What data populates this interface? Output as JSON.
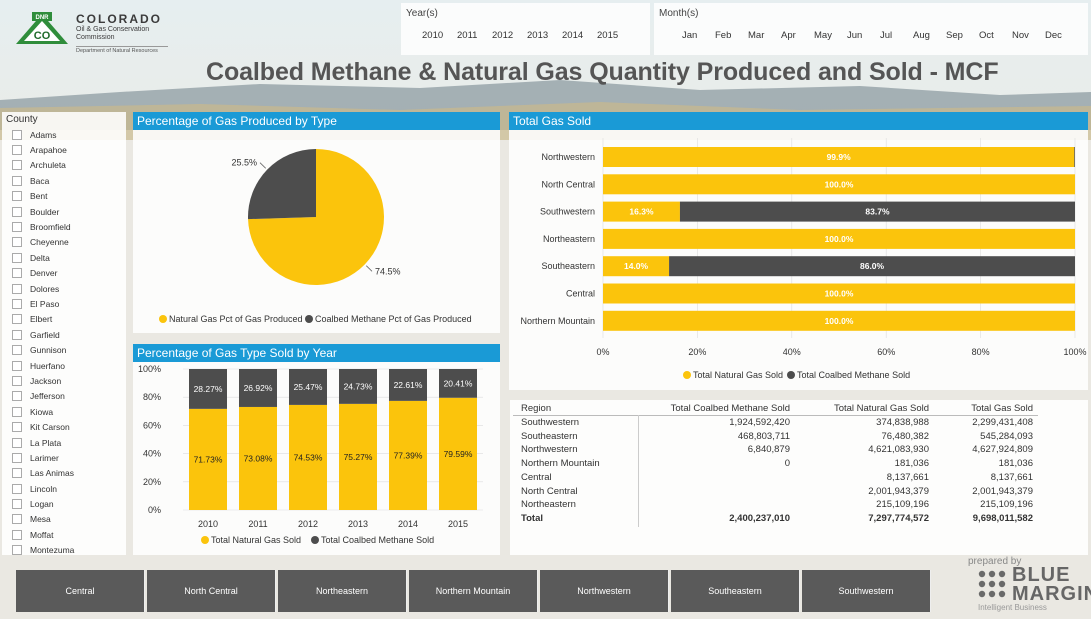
{
  "header": {
    "logo": {
      "badge": "DNR",
      "mark": "CO",
      "name": "COLORADO",
      "subtitle": "Oil & Gas Conservation Commission",
      "department": "Department of Natural Resources"
    },
    "title": "Coalbed Methane & Natural Gas Quantity Produced and Sold - MCF"
  },
  "year_slicer": {
    "label": "Year(s)",
    "options": [
      "2010",
      "2011",
      "2012",
      "2013",
      "2014",
      "2015"
    ]
  },
  "month_slicer": {
    "label": "Month(s)",
    "options": [
      "Jan",
      "Feb",
      "Mar",
      "Apr",
      "May",
      "Jun",
      "Jul",
      "Aug",
      "Sep",
      "Oct",
      "Nov",
      "Dec"
    ]
  },
  "county_slicer": {
    "label": "County",
    "items": [
      "Adams",
      "Arapahoe",
      "Archuleta",
      "Baca",
      "Bent",
      "Boulder",
      "Broomfield",
      "Cheyenne",
      "Delta",
      "Denver",
      "Dolores",
      "El Paso",
      "Elbert",
      "Garfield",
      "Gunnison",
      "Huerfano",
      "Jackson",
      "Jefferson",
      "Kiowa",
      "Kit Carson",
      "La Plata",
      "Larimer",
      "Las Animas",
      "Lincoln",
      "Logan",
      "Mesa",
      "Moffat",
      "Montezuma"
    ]
  },
  "colors": {
    "natural_gas": "#fbc40c",
    "coalbed_methane": "#4d4d4d",
    "title_bar": "#1a9ad6",
    "button": "#5a5a5a"
  },
  "pie_panel": {
    "title": "Percentage of Gas Produced by Type"
  },
  "year_panel": {
    "title": "Percentage of Gas Type Sold by Year"
  },
  "region_panel": {
    "title": "Total Gas Sold"
  },
  "chart_data": [
    {
      "type": "pie",
      "title": "Percentage of Gas Produced by Type",
      "slices": [
        {
          "name": "Natural Gas Pct of Gas Produced",
          "value": 74.5,
          "label": "74.5%",
          "color": "#fbc40c"
        },
        {
          "name": "Coalbed Methane Pct of Gas Produced",
          "value": 25.5,
          "label": "25.5%",
          "color": "#4d4d4d"
        }
      ],
      "legend": "bottom"
    },
    {
      "type": "bar",
      "stacked": true,
      "percent": true,
      "title": "Percentage of Gas Type Sold by Year",
      "categories": [
        "2010",
        "2011",
        "2012",
        "2013",
        "2014",
        "2015"
      ],
      "yticks": [
        "0%",
        "20%",
        "40%",
        "60%",
        "80%",
        "100%"
      ],
      "ylim": [
        0,
        100
      ],
      "series": [
        {
          "name": "Total Natural Gas Sold",
          "color": "#fbc40c",
          "values": [
            71.73,
            73.08,
            74.53,
            75.27,
            77.39,
            79.59
          ],
          "labels": [
            "71.73%",
            "73.08%",
            "74.53%",
            "75.27%",
            "77.39%",
            "79.59%"
          ]
        },
        {
          "name": "Total Coalbed Methane Sold",
          "color": "#4d4d4d",
          "values": [
            28.27,
            26.92,
            25.47,
            24.73,
            22.61,
            20.41
          ],
          "labels": [
            "28.27%",
            "26.92%",
            "25.47%",
            "24.73%",
            "22.61%",
            "20.41%"
          ]
        }
      ],
      "legend": "bottom"
    },
    {
      "type": "bar",
      "orientation": "horizontal",
      "stacked": true,
      "percent": true,
      "title": "Total Gas Sold",
      "categories": [
        "Northwestern",
        "North Central",
        "Southwestern",
        "Northeastern",
        "Southeastern",
        "Central",
        "Northern Mountain"
      ],
      "xticks": [
        "0%",
        "20%",
        "40%",
        "60%",
        "80%",
        "100%"
      ],
      "xlim": [
        0,
        100
      ],
      "series": [
        {
          "name": "Total Natural Gas Sold",
          "color": "#fbc40c",
          "values": [
            99.85,
            100,
            16.3,
            100,
            14.0,
            100,
            100
          ],
          "labels": [
            "99.9%",
            "100.0%",
            "16.3%",
            "100.0%",
            "14.0%",
            "100.0%",
            "100.0%"
          ]
        },
        {
          "name": "Total Coalbed Methane Sold",
          "color": "#4d4d4d",
          "values": [
            0.15,
            0,
            83.7,
            0,
            86.0,
            0,
            0
          ],
          "labels": [
            "",
            "",
            "83.7%",
            "",
            "86.0%",
            "",
            ""
          ]
        }
      ],
      "legend": "bottom"
    }
  ],
  "table": {
    "headers": [
      "Region",
      "Total Coalbed Methane Sold",
      "Total Natural Gas Sold",
      "Total Gas Sold"
    ],
    "rows": [
      [
        "Southwestern",
        "1,924,592,420",
        "374,838,988",
        "2,299,431,408"
      ],
      [
        "Southeastern",
        "468,803,711",
        "76,480,382",
        "545,284,093"
      ],
      [
        "Northwestern",
        "6,840,879",
        "4,621,083,930",
        "4,627,924,809"
      ],
      [
        "Northern Mountain",
        "0",
        "181,036",
        "181,036"
      ],
      [
        "Central",
        "",
        "8,137,661",
        "8,137,661"
      ],
      [
        "North Central",
        "",
        "2,001,943,379",
        "2,001,943,379"
      ],
      [
        "Northeastern",
        "",
        "215,109,196",
        "215,109,196"
      ]
    ],
    "total": [
      "Total",
      "2,400,237,010",
      "7,297,774,572",
      "9,698,011,582"
    ]
  },
  "region_buttons": [
    "Central",
    "North Central",
    "Northeastern",
    "Northern Mountain",
    "Northwestern",
    "Southeastern",
    "Southwestern"
  ],
  "brand": {
    "prepared_by": "prepared by",
    "name_line1": "BLUE",
    "name_line2": "MARGIN",
    "tagline": "Intelligent Business"
  }
}
